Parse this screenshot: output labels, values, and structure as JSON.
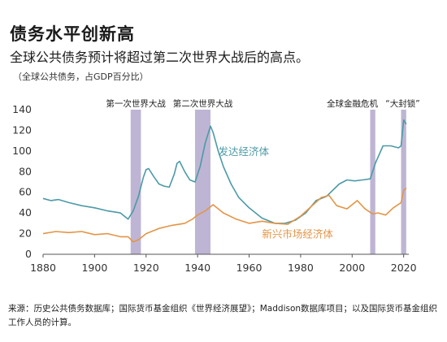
{
  "header": {
    "title": "债务水平创新高",
    "subtitle": "全球公共债务预计将超过第二次世界大战后的高点。",
    "unit_note": "（全球公共债务，占GDP百分比）"
  },
  "source_note": "来源：历史公共债务数据库；国际货币基金组织《世界经济展望》；Maddison数据库项目；以及国际货币基金组织工作人员的计算。",
  "colors": {
    "advanced": "#4c9aa6",
    "emerging": "#e39546",
    "shade": "#b3a8cc",
    "axis": "#555555",
    "grid": "#e6e6e6"
  },
  "chart_data": {
    "type": "line",
    "xlim": [
      1880,
      2022
    ],
    "ylim": [
      0,
      140
    ],
    "xticks": [
      1880,
      1900,
      1920,
      1940,
      1960,
      1980,
      2000,
      2020
    ],
    "yticks": [
      0,
      20,
      40,
      60,
      80,
      100,
      120,
      140
    ],
    "grid": false,
    "annotations": [
      {
        "label": "第一次世界大战",
        "x_start": 1914,
        "x_end": 1918
      },
      {
        "label": "第二次世界大战",
        "x_start": 1939,
        "x_end": 1945
      },
      {
        "label": "全球金融危机",
        "x_start": 2007,
        "x_end": 2009
      },
      {
        "label": "“大封锁”",
        "x_start": 2019,
        "x_end": 2021
      }
    ],
    "series": [
      {
        "name": "发达经济体",
        "color": "#4c9aa6",
        "x": [
          1880,
          1883,
          1886,
          1890,
          1895,
          1900,
          1905,
          1910,
          1913,
          1915,
          1917,
          1919,
          1920,
          1921,
          1923,
          1925,
          1927,
          1929,
          1931,
          1932,
          1933,
          1935,
          1937,
          1939,
          1941,
          1943,
          1945,
          1946,
          1948,
          1950,
          1953,
          1956,
          1960,
          1965,
          1970,
          1974,
          1978,
          1982,
          1986,
          1990,
          1995,
          1998,
          2001,
          2004,
          2007,
          2009,
          2012,
          2015,
          2018,
          2019,
          2020,
          2021
        ],
        "values": [
          54,
          52,
          53,
          50,
          47,
          45,
          42,
          40,
          34,
          42,
          56,
          75,
          82,
          83,
          75,
          68,
          66,
          65,
          78,
          88,
          90,
          80,
          72,
          70,
          85,
          108,
          124,
          118,
          100,
          85,
          68,
          55,
          45,
          35,
          30,
          30,
          33,
          40,
          52,
          56,
          68,
          72,
          71,
          72,
          73,
          88,
          105,
          105,
          103,
          105,
          130,
          126
        ]
      },
      {
        "name": "新兴市场经济体",
        "color": "#e39546",
        "x": [
          1880,
          1885,
          1890,
          1895,
          1900,
          1905,
          1910,
          1913,
          1915,
          1917,
          1920,
          1925,
          1930,
          1935,
          1938,
          1940,
          1943,
          1946,
          1950,
          1955,
          1960,
          1965,
          1970,
          1975,
          1980,
          1984,
          1988,
          1991,
          1994,
          1998,
          2002,
          2005,
          2008,
          2010,
          2013,
          2016,
          2019,
          2020,
          2021
        ],
        "values": [
          20,
          22,
          21,
          22,
          19,
          20,
          17,
          17,
          12,
          14,
          20,
          25,
          28,
          30,
          34,
          38,
          42,
          48,
          40,
          34,
          30,
          32,
          30,
          29,
          37,
          46,
          55,
          57,
          47,
          44,
          52,
          44,
          39,
          40,
          38,
          45,
          50,
          62,
          64
        ]
      }
    ]
  },
  "series_labels": {
    "advanced": "发达经济体",
    "emerging": "新兴市场经济体"
  }
}
